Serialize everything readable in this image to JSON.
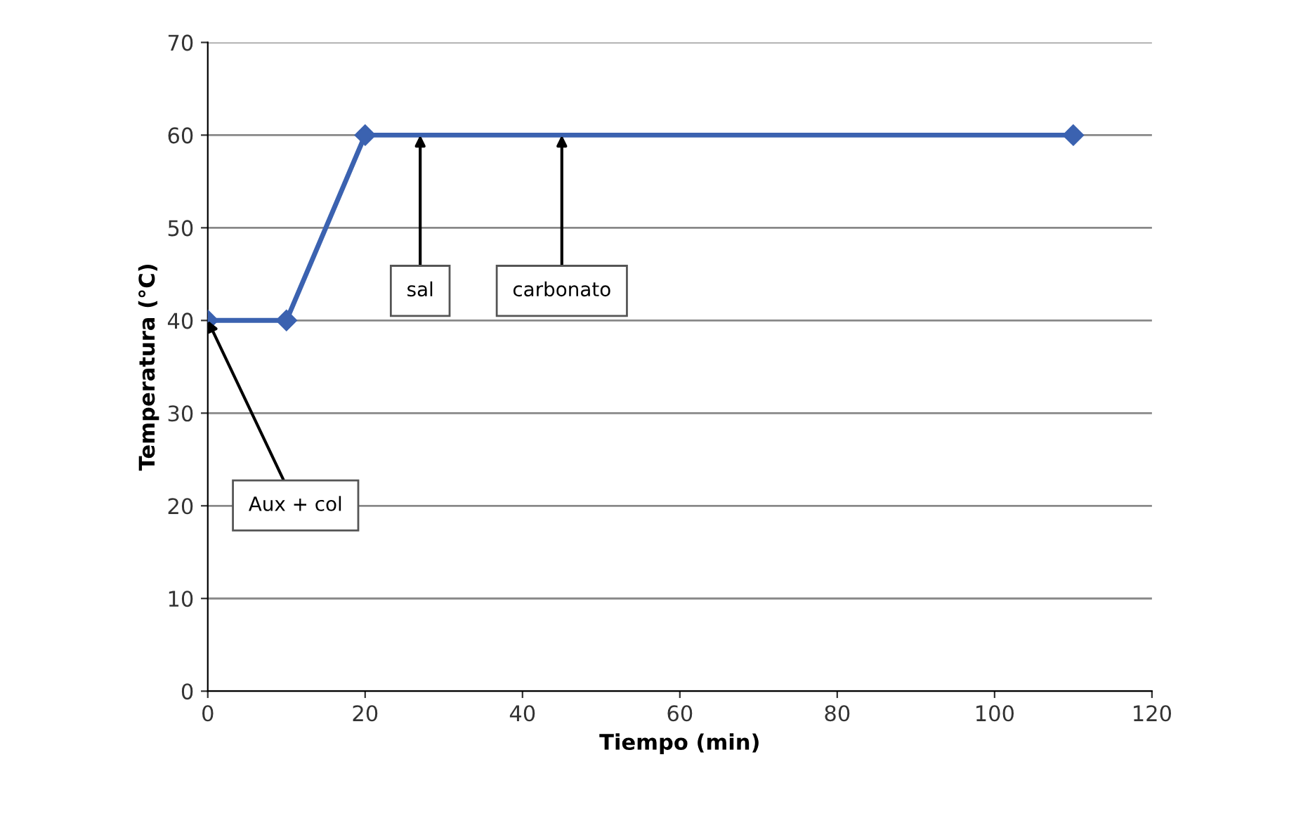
{
  "chart_data": {
    "type": "line",
    "xlabel": "Tiempo (min)",
    "ylabel": "Temperatura (°C)",
    "x": [
      0,
      10,
      20,
      110
    ],
    "series": [
      {
        "color": "#3b62b0",
        "values": [
          40,
          40,
          60,
          60
        ]
      }
    ],
    "xlim": [
      0,
      120
    ],
    "xticks": [
      0,
      20,
      40,
      60,
      80,
      100,
      120
    ],
    "ylim": [
      0,
      70
    ],
    "yticks": [
      0,
      10,
      20,
      30,
      40,
      50,
      60,
      70
    ],
    "grid": "y",
    "marker": "diamond",
    "line_style": "solid",
    "annotations": [
      {
        "text": "sal",
        "x": 27,
        "y": 60
      },
      {
        "text": "carbonato",
        "x": 45,
        "y": 60
      },
      {
        "text": "Aux + col",
        "x": 0,
        "y": 40
      }
    ]
  }
}
